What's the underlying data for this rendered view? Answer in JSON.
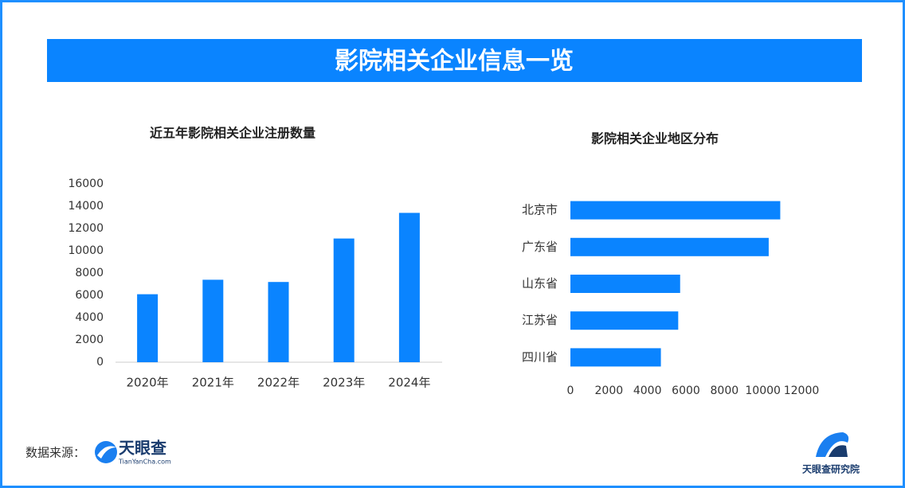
{
  "header": {
    "title": "影院相关企业信息一览"
  },
  "chart_data": [
    {
      "type": "bar",
      "title": "近五年影院相关企业注册数量",
      "categories": [
        "2020年",
        "2021年",
        "2022年",
        "2023年",
        "2024年"
      ],
      "values": [
        6100,
        7400,
        7200,
        11100,
        13400
      ],
      "color": "#0a84ff",
      "ylim": [
        0,
        16000
      ],
      "yticks": [
        0,
        2000,
        4000,
        6000,
        8000,
        10000,
        12000,
        14000,
        16000
      ],
      "grid": false
    },
    {
      "type": "barh",
      "title": "影院相关企业地区分布",
      "categories": [
        "北京市",
        "广东省",
        "山东省",
        "江苏省",
        "四川省"
      ],
      "values": [
        10900,
        10300,
        5700,
        5600,
        4700
      ],
      "color": "#0a84ff",
      "xlim": [
        0,
        12000
      ],
      "xticks": [
        0,
        2000,
        4000,
        6000,
        8000,
        10000,
        12000
      ],
      "grid": false
    }
  ],
  "footer": {
    "source_label": "数据来源：",
    "source_logo": "天眼查",
    "source_url": "TianYanCha.com",
    "brand": "天眼查研究院"
  }
}
